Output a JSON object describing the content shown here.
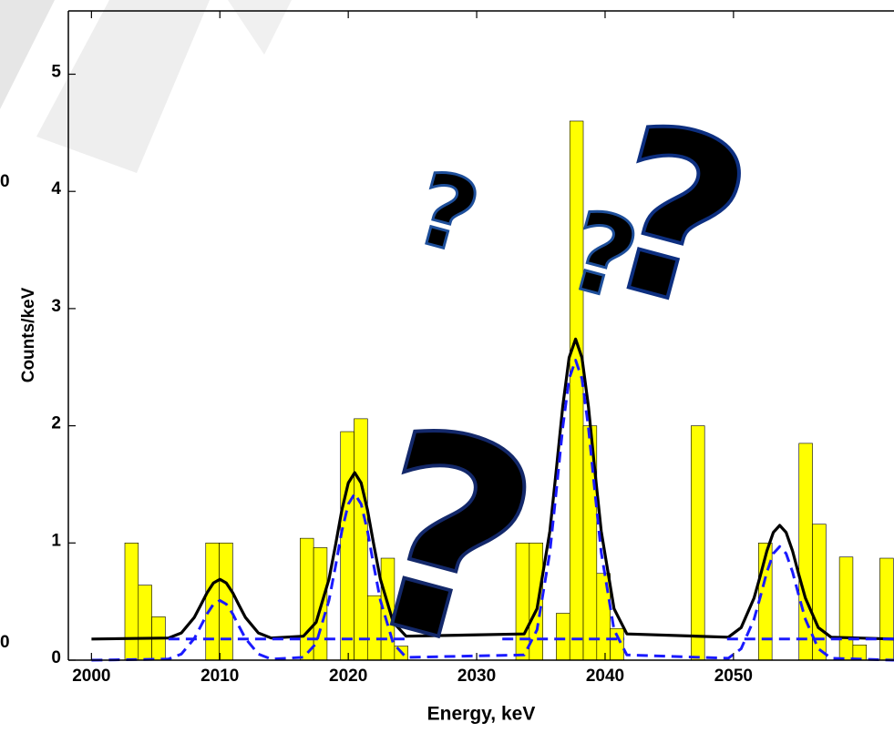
{
  "chart_data": {
    "type": "histogram",
    "xlabel": "Energy, keV",
    "ylabel": "Counts/keV",
    "cropped_labels": [
      "0",
      "0"
    ],
    "xlim": [
      1998.2,
      2062.5
    ],
    "ylim": [
      0,
      5.54
    ],
    "xticks": [
      2000,
      2010,
      2020,
      2030,
      2040,
      2050
    ],
    "yticks": [
      0,
      1,
      2,
      3,
      4,
      5
    ],
    "color": "#ffff00",
    "edgecolor": "#000000",
    "bins": [
      2002.6,
      2003.65,
      2004.7,
      2005.75,
      2006.8,
      2007.85,
      2008.9,
      2009.95,
      2011,
      2012.05,
      2013.1,
      2014.15,
      2015.2,
      2016.25,
      2017.3,
      2018.35,
      2019.4,
      2020.45,
      2021.5,
      2022.55,
      2023.6,
      2024.65,
      2025.7,
      2026.75,
      2027.8,
      2028.85,
      2029.9,
      2030.95,
      2032,
      2033.05,
      2034.1,
      2035.15,
      2036.2,
      2037.25,
      2038.3,
      2039.35,
      2040.4,
      2041.45,
      2042.5,
      2043.55,
      2044.6,
      2045.65,
      2046.7,
      2047.75,
      2048.8,
      2049.85,
      2050.9,
      2051.95,
      2053,
      2054.05,
      2055.1,
      2056.15,
      2057.2,
      2058.25,
      2059.3,
      2060.35,
      2061.4,
      2062.45
    ],
    "counts": [
      1.0,
      0.64,
      0.37,
      0,
      0,
      0,
      1.0,
      1.0,
      0,
      0,
      0,
      0,
      0,
      1.04,
      0.96,
      0,
      1.95,
      2.06,
      0.55,
      0.87,
      0.12,
      0,
      0,
      0,
      0,
      0,
      0,
      0,
      0,
      1.0,
      1.0,
      0,
      0.4,
      4.6,
      2.0,
      0.74,
      0.27,
      0,
      0,
      0,
      0,
      0,
      2.0,
      0,
      0,
      0,
      0,
      1.0,
      0,
      0,
      1.85,
      1.16,
      0,
      0.88,
      0.13,
      0,
      0.87
    ],
    "lines": [
      {
        "color": "#000000",
        "dash": false,
        "x": [
          2000,
          2006,
          2007,
          2008,
          2008.5,
          2009,
          2009.5,
          2010,
          2010.5,
          2011,
          2011.5,
          2012,
          2013,
          2014,
          2016.5,
          2017.5,
          2018.5,
          2019,
          2019.5,
          2020,
          2020.5,
          2021,
          2021.5,
          2022,
          2022.5,
          2023.5,
          2024.5,
          2033.7,
          2034.7,
          2035.7,
          2036.2,
          2036.7,
          2037.2,
          2037.7,
          2038.2,
          2038.7,
          2039.2,
          2039.7,
          2040.7,
          2041.7,
          2049.6,
          2050.6,
          2051.6,
          2052.1,
          2052.6,
          2053.1,
          2053.6,
          2054.1,
          2054.6,
          2055.1,
          2055.6,
          2056.6,
          2057.6,
          2062.5
        ],
        "values": [
          0.18,
          0.189,
          0.232,
          0.364,
          0.467,
          0.575,
          0.658,
          0.69,
          0.658,
          0.575,
          0.467,
          0.364,
          0.232,
          0.189,
          0.204,
          0.323,
          0.691,
          0.979,
          1.28,
          1.512,
          1.6,
          1.512,
          1.28,
          0.979,
          0.691,
          0.323,
          0.204,
          0.224,
          0.439,
          1.102,
          1.621,
          2.164,
          2.581,
          2.74,
          2.581,
          2.164,
          1.621,
          1.102,
          0.439,
          0.224,
          0.196,
          0.278,
          0.529,
          0.726,
          0.932,
          1.09,
          1.15,
          1.09,
          0.932,
          0.726,
          0.529,
          0.278,
          0.196,
          0.18
        ]
      },
      {
        "color": "#1a1aff",
        "dash": true,
        "x": [
          2000,
          2006,
          2007,
          2008,
          2008.5,
          2009,
          2009.5,
          2010,
          2010.5,
          2011,
          2011.5,
          2012,
          2013,
          2014,
          2016.5,
          2017.5,
          2018.5,
          2019,
          2019.5,
          2020,
          2020.5,
          2021,
          2021.5,
          2022,
          2022.5,
          2023.5,
          2024.5,
          2033.7,
          2034.7,
          2035.7,
          2036.2,
          2036.7,
          2037.2,
          2037.7,
          2038.2,
          2038.7,
          2039.2,
          2039.7,
          2040.7,
          2041.7,
          2049.6,
          2050.6,
          2051.6,
          2052.1,
          2052.6,
          2053.1,
          2053.6,
          2054.1,
          2054.6,
          2055.1,
          2055.6,
          2056.6,
          2057.6,
          2062.5
        ],
        "values": [
          0,
          0.009,
          0.052,
          0.184,
          0.287,
          0.395,
          0.478,
          0.51,
          0.478,
          0.395,
          0.287,
          0.184,
          0.052,
          0.009,
          0.024,
          0.143,
          0.511,
          0.799,
          1.1,
          1.332,
          1.42,
          1.332,
          1.1,
          0.799,
          0.511,
          0.143,
          0.024,
          0.044,
          0.259,
          0.922,
          1.441,
          1.984,
          2.401,
          2.56,
          2.401,
          1.984,
          1.441,
          0.922,
          0.259,
          0.044,
          0.016,
          0.098,
          0.349,
          0.546,
          0.752,
          0.91,
          0.97,
          0.91,
          0.752,
          0.546,
          0.349,
          0.098,
          0.016,
          0
        ]
      },
      {
        "color": "#1a1aff",
        "dash": true,
        "x": [
          2006,
          2024.5,
          2028,
          2032,
          2041.5,
          2045,
          2049.5,
          2062.5
        ],
        "values": [
          0.18,
          0.18,
          null,
          0.18,
          0.18,
          null,
          0.18,
          0.18
        ]
      }
    ]
  }
}
